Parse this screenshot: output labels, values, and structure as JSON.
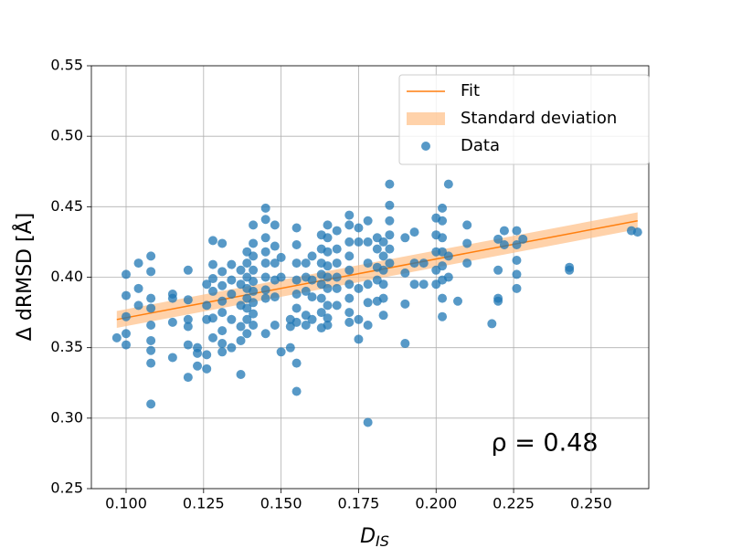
{
  "chart_data": {
    "type": "scatter",
    "xlabel": {
      "text": "D",
      "subscript": "IS"
    },
    "ylabel": "Δ dRMSD  [Å]",
    "annotation": "ρ = 0.48",
    "xlim": [
      0.0888,
      0.2686
    ],
    "ylim": [
      0.25,
      0.55
    ],
    "xticks": [
      {
        "value": 0.1,
        "label": "0.100"
      },
      {
        "value": 0.125,
        "label": "0.125"
      },
      {
        "value": 0.15,
        "label": "0.150"
      },
      {
        "value": 0.175,
        "label": "0.175"
      },
      {
        "value": 0.2,
        "label": "0.200"
      },
      {
        "value": 0.225,
        "label": "0.225"
      },
      {
        "value": 0.25,
        "label": "0.250"
      }
    ],
    "yticks": [
      0.25,
      {
        "value": 0.3,
        "label": "0.30"
      },
      0.35,
      {
        "value": 0.4,
        "label": "0.40"
      },
      0.45,
      {
        "value": 0.5,
        "label": "0.50"
      },
      0.55
    ],
    "grid": true,
    "legend": "upper right",
    "series": [
      {
        "name": "Fit",
        "kind": "line",
        "color": "#ff7f0e",
        "x": [
          0.097,
          0.265
        ],
        "values": [
          0.37,
          0.44
        ]
      },
      {
        "name": "Standard deviation",
        "kind": "band",
        "color": "#ffbf86",
        "x": [
          0.097,
          0.265
        ],
        "lower": [
          0.364,
          0.434
        ],
        "upper": [
          0.376,
          0.446
        ]
      },
      {
        "name": "Data",
        "kind": "points",
        "color": "#1f77b4",
        "x": [
          0.097,
          0.1,
          0.1,
          0.1,
          0.1,
          0.1,
          0.104,
          0.104,
          0.104,
          0.108,
          0.108,
          0.108,
          0.108,
          0.108,
          0.108,
          0.108,
          0.108,
          0.108,
          0.115,
          0.115,
          0.115,
          0.115,
          0.12,
          0.12,
          0.12,
          0.12,
          0.12,
          0.12,
          0.123,
          0.123,
          0.123,
          0.126,
          0.126,
          0.126,
          0.126,
          0.126,
          0.128,
          0.128,
          0.128,
          0.128,
          0.128,
          0.128,
          0.131,
          0.131,
          0.131,
          0.131,
          0.131,
          0.131,
          0.131,
          0.131,
          0.134,
          0.134,
          0.134,
          0.134,
          0.134,
          0.137,
          0.137,
          0.137,
          0.137,
          0.137,
          0.137,
          0.139,
          0.139,
          0.139,
          0.139,
          0.139,
          0.139,
          0.139,
          0.139,
          0.141,
          0.141,
          0.141,
          0.141,
          0.141,
          0.141,
          0.141,
          0.141,
          0.141,
          0.145,
          0.145,
          0.145,
          0.145,
          0.145,
          0.145,
          0.145,
          0.145,
          0.145,
          0.148,
          0.148,
          0.148,
          0.148,
          0.148,
          0.148,
          0.15,
          0.15,
          0.15,
          0.153,
          0.153,
          0.153,
          0.155,
          0.155,
          0.155,
          0.155,
          0.155,
          0.155,
          0.155,
          0.155,
          0.155,
          0.158,
          0.158,
          0.158,
          0.158,
          0.158,
          0.16,
          0.16,
          0.16,
          0.16,
          0.163,
          0.163,
          0.163,
          0.163,
          0.163,
          0.163,
          0.163,
          0.163,
          0.165,
          0.165,
          0.165,
          0.165,
          0.165,
          0.165,
          0.165,
          0.165,
          0.165,
          0.168,
          0.168,
          0.168,
          0.168,
          0.168,
          0.168,
          0.172,
          0.172,
          0.172,
          0.172,
          0.172,
          0.172,
          0.172,
          0.172,
          0.172,
          0.175,
          0.175,
          0.175,
          0.175,
          0.175,
          0.178,
          0.178,
          0.178,
          0.178,
          0.178,
          0.178,
          0.178,
          0.181,
          0.181,
          0.181,
          0.181,
          0.181,
          0.183,
          0.183,
          0.183,
          0.183,
          0.183,
          0.183,
          0.185,
          0.185,
          0.185,
          0.185,
          0.185,
          0.185,
          0.19,
          0.19,
          0.19,
          0.19,
          0.193,
          0.193,
          0.193,
          0.196,
          0.196,
          0.2,
          0.2,
          0.2,
          0.2,
          0.2,
          0.202,
          0.202,
          0.202,
          0.202,
          0.202,
          0.202,
          0.202,
          0.202,
          0.204,
          0.204,
          0.204,
          0.207,
          0.21,
          0.21,
          0.21,
          0.218,
          0.22,
          0.22,
          0.22,
          0.22,
          0.222,
          0.222,
          0.226,
          0.226,
          0.226,
          0.226,
          0.226,
          0.228,
          0.243,
          0.243,
          0.263,
          0.265
        ],
        "values": [
          0.357,
          0.402,
          0.387,
          0.372,
          0.36,
          0.352,
          0.41,
          0.392,
          0.38,
          0.415,
          0.404,
          0.385,
          0.378,
          0.366,
          0.355,
          0.348,
          0.339,
          0.31,
          0.388,
          0.385,
          0.368,
          0.343,
          0.405,
          0.384,
          0.37,
          0.365,
          0.352,
          0.329,
          0.35,
          0.346,
          0.337,
          0.395,
          0.38,
          0.37,
          0.345,
          0.335,
          0.426,
          0.409,
          0.399,
          0.39,
          0.371,
          0.357,
          0.424,
          0.404,
          0.394,
          0.383,
          0.375,
          0.362,
          0.353,
          0.347,
          0.409,
          0.398,
          0.388,
          0.37,
          0.35,
          0.405,
          0.395,
          0.38,
          0.365,
          0.355,
          0.331,
          0.418,
          0.41,
          0.4,
          0.392,
          0.385,
          0.378,
          0.37,
          0.36,
          0.437,
          0.424,
          0.415,
          0.405,
          0.397,
          0.39,
          0.382,
          0.374,
          0.366,
          0.449,
          0.441,
          0.428,
          0.418,
          0.41,
          0.4,
          0.391,
          0.385,
          0.36,
          0.437,
          0.422,
          0.41,
          0.398,
          0.386,
          0.366,
          0.414,
          0.4,
          0.347,
          0.37,
          0.365,
          0.35,
          0.435,
          0.423,
          0.41,
          0.398,
          0.388,
          0.378,
          0.368,
          0.339,
          0.319,
          0.41,
          0.4,
          0.39,
          0.373,
          0.366,
          0.415,
          0.398,
          0.386,
          0.37,
          0.43,
          0.42,
          0.41,
          0.402,
          0.395,
          0.385,
          0.375,
          0.364,
          0.437,
          0.428,
          0.418,
          0.408,
          0.4,
          0.392,
          0.38,
          0.371,
          0.366,
          0.433,
          0.42,
          0.41,
          0.4,
          0.392,
          0.38,
          0.444,
          0.437,
          0.425,
          0.415,
          0.405,
          0.395,
          0.385,
          0.375,
          0.368,
          0.435,
          0.425,
          0.392,
          0.37,
          0.356,
          0.44,
          0.425,
          0.41,
          0.395,
          0.382,
          0.366,
          0.297,
          0.428,
          0.42,
          0.407,
          0.398,
          0.383,
          0.425,
          0.415,
          0.405,
          0.395,
          0.385,
          0.373,
          0.466,
          0.451,
          0.44,
          0.43,
          0.42,
          0.41,
          0.428,
          0.403,
          0.381,
          0.353,
          0.432,
          0.41,
          0.395,
          0.41,
          0.395,
          0.442,
          0.43,
          0.418,
          0.405,
          0.395,
          0.449,
          0.44,
          0.428,
          0.418,
          0.408,
          0.398,
          0.385,
          0.372,
          0.466,
          0.415,
          0.4,
          0.383,
          0.437,
          0.424,
          0.41,
          0.367,
          0.427,
          0.405,
          0.385,
          0.383,
          0.433,
          0.423,
          0.433,
          0.423,
          0.412,
          0.402,
          0.392,
          0.427,
          0.407,
          0.405,
          0.433,
          0.432
        ]
      }
    ]
  }
}
